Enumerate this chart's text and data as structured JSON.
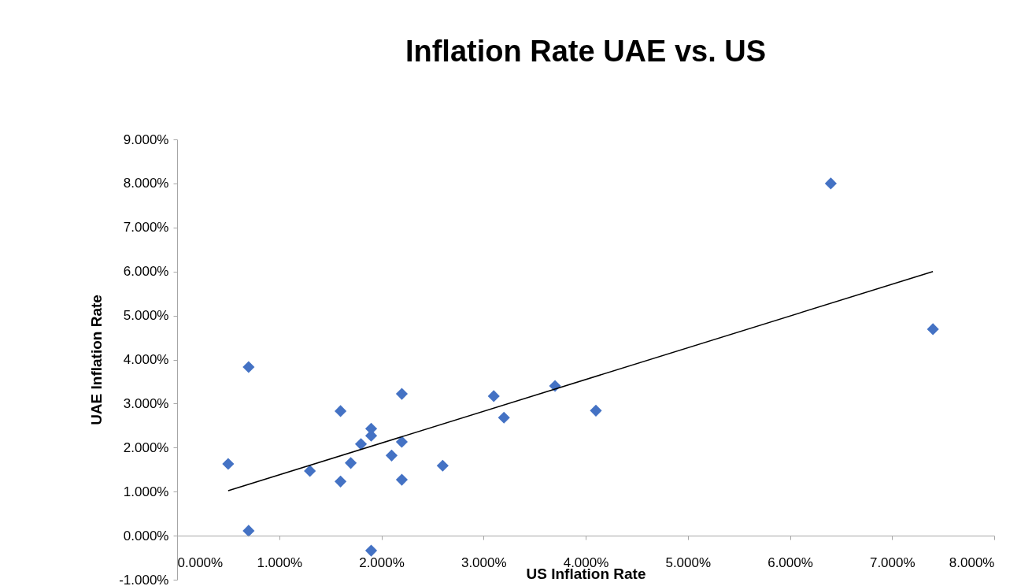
{
  "chart_data": {
    "type": "scatter",
    "title": "Inflation Rate UAE vs. US",
    "xlabel": "US Inflation Rate",
    "ylabel": "UAE Inflation Rate",
    "series": [
      {
        "marker": "diamond",
        "color": "#4472c4",
        "x": [
          0.5,
          0.7,
          0.7,
          1.3,
          1.6,
          1.6,
          1.7,
          1.8,
          1.9,
          1.9,
          1.9,
          2.1,
          2.2,
          2.2,
          2.2,
          2.6,
          3.1,
          3.2,
          3.7,
          4.1,
          6.4,
          7.4
        ],
        "values": [
          1.63,
          3.83,
          0.11,
          1.47,
          2.83,
          1.23,
          1.65,
          2.08,
          2.43,
          2.27,
          -0.34,
          1.82,
          3.22,
          2.13,
          1.27,
          1.59,
          3.17,
          2.68,
          3.4,
          2.84,
          8.0,
          4.69
        ]
      },
      {
        "type": "line",
        "color": "#000000",
        "x": [
          0.5,
          7.4
        ],
        "values": [
          1.02,
          6.0
        ]
      }
    ],
    "xlim": [
      0,
      8
    ],
    "ylim": [
      -1,
      9
    ],
    "xticks": [
      {
        "value": 0,
        "label": "0.000%"
      },
      {
        "value": 1,
        "label": "1.000%"
      },
      {
        "value": 2,
        "label": "2.000%"
      },
      {
        "value": 3,
        "label": "3.000%"
      },
      {
        "value": 4,
        "label": "4.000%"
      },
      {
        "value": 5,
        "label": "5.000%"
      },
      {
        "value": 6,
        "label": "6.000%"
      },
      {
        "value": 7,
        "label": "7.000%"
      },
      {
        "value": 8,
        "label": "8.000%"
      }
    ],
    "yticks": [
      {
        "value": -1,
        "label": "-1.000%"
      },
      {
        "value": 0,
        "label": "0.000%"
      },
      {
        "value": 1,
        "label": "1.000%"
      },
      {
        "value": 2,
        "label": "2.000%"
      },
      {
        "value": 3,
        "label": "3.000%"
      },
      {
        "value": 4,
        "label": "4.000%"
      },
      {
        "value": 5,
        "label": "5.000%"
      },
      {
        "value": 6,
        "label": "6.000%"
      },
      {
        "value": 7,
        "label": "7.000%"
      },
      {
        "value": 8,
        "label": "8.000%"
      },
      {
        "value": 9,
        "label": "9.000%"
      }
    ],
    "tick_labels": "xy"
  }
}
